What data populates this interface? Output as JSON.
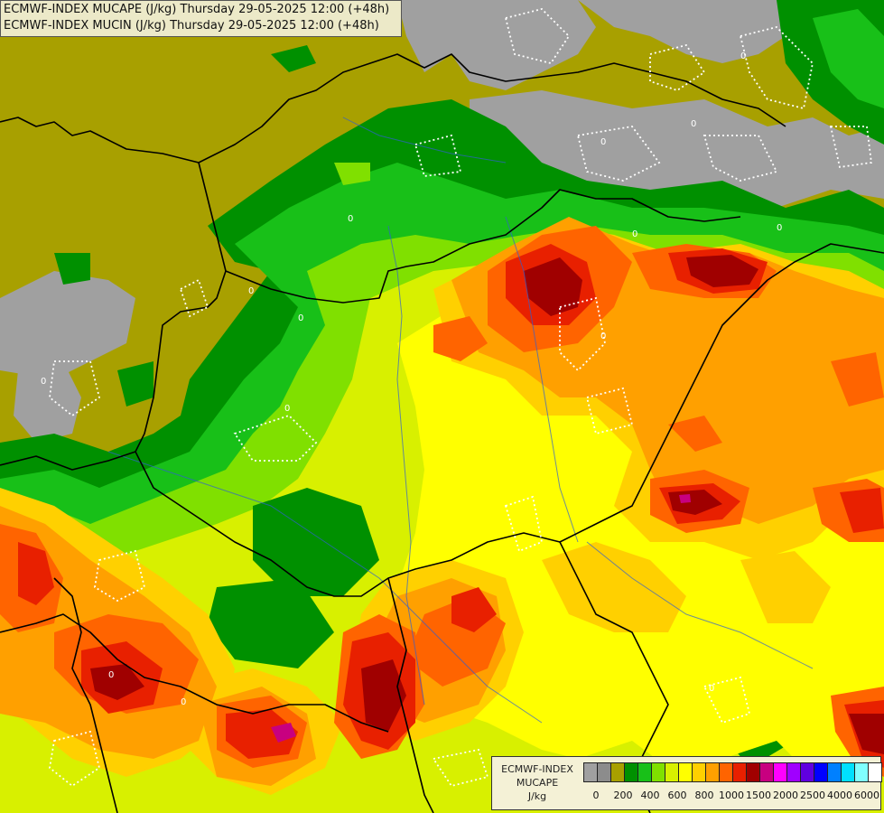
{
  "header": {
    "line1": "ECMWF-INDEX MUCAPE (J/kg) Thursday 29-05-2025 12:00 (+48h)",
    "line2": "ECMWF-INDEX MUCIN (J/kg) Thursday 29-05-2025 12:00 (+48h)"
  },
  "legend": {
    "line1": "ECMWF-INDEX",
    "line2": "MUCAPE",
    "line3": "J/kg",
    "colors": [
      "#a0a0a0",
      "#8c8c8c",
      "#a8a000",
      "#009000",
      "#18c018",
      "#80e000",
      "#d8f000",
      "#ffff00",
      "#ffd000",
      "#ffa000",
      "#ff6400",
      "#e82000",
      "#a00000",
      "#c80080",
      "#ff00ff",
      "#a000ff",
      "#6000e0",
      "#0000ff",
      "#0080ff",
      "#00e0ff",
      "#80ffff",
      "#ffffff"
    ],
    "ticks": [
      "0",
      "200",
      "400",
      "600",
      "800",
      "1000",
      "1500",
      "2000",
      "2500",
      "4000",
      "6000"
    ]
  },
  "map": {
    "colors": {
      "none": "#a8a000",
      "gray": "#a0a0a0",
      "dkgreen": "#009000",
      "green": "#18c018",
      "ltgreen": "#80e000",
      "yellowgreen": "#d8f000",
      "yellow": "#ffff00",
      "gold": "#ffd000",
      "orange": "#ffa000",
      "dkorange": "#ff6400",
      "red": "#e82000",
      "darkred": "#a00000",
      "magenta": "#c80080",
      "border": "#000000",
      "river": "#3060d0",
      "cin": "#ffffff"
    },
    "contour_label": "0"
  }
}
